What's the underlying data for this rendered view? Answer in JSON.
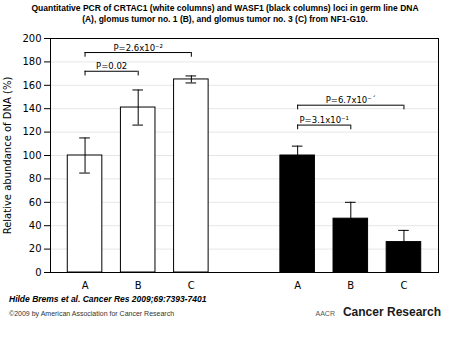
{
  "chart_data": {
    "type": "bar",
    "title": "Quantitative PCR of CRTAC1 (white columns) and WASF1 (black columns) loci in germ line DNA",
    "subtitle": "(A), glomus tumor no. 1 (B), and glomus tumor no. 3 (C) from NF1-G10.",
    "ylabel": "Relative abundance of DNA (%)",
    "categories": [
      "A",
      "B",
      "C",
      "A",
      "B",
      "C"
    ],
    "values": [
      100,
      141,
      165,
      100,
      46,
      26
    ],
    "errors": [
      15,
      15,
      3,
      8,
      14,
      10
    ],
    "colors": [
      "white",
      "white",
      "white",
      "black",
      "black",
      "black"
    ],
    "ylim": [
      0,
      200
    ],
    "yticks": [
      0,
      20,
      40,
      60,
      80,
      100,
      120,
      140,
      160,
      180,
      200
    ],
    "grid": true,
    "brackets": [
      {
        "from": 0,
        "to": 2,
        "y": 188,
        "tick_height": 4,
        "label": "P=2.6x10⁻²"
      },
      {
        "from": 0,
        "to": 1,
        "y": 172,
        "tick_height": 4,
        "label": "P=0.02"
      },
      {
        "from": 3,
        "to": 5,
        "y": 143,
        "tick_height": 4,
        "label": "P=6.7x10⁻´"
      },
      {
        "from": 3,
        "to": 4,
        "y": 126,
        "tick_height": 4,
        "label": "P=3.1x10⁻¹"
      }
    ],
    "footnote": "Hilde Brems et al. Cancer Res 2009;69:7393-7401",
    "copyright": "©2009 by American Association for Cancer Research",
    "aacr_text": "AACR",
    "journal": "Cancer Research"
  }
}
